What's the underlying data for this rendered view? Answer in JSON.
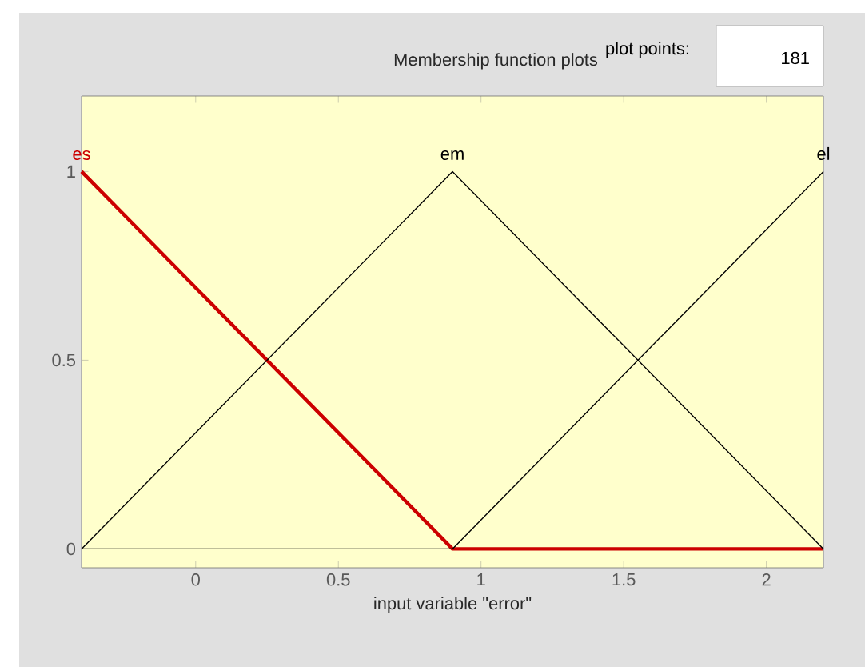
{
  "chart_data": {
    "type": "line",
    "title": "Membership function plots",
    "xlabel": "input variable \"error\"",
    "annotations": [
      "plot points:",
      "181"
    ],
    "x": [
      -0.4,
      0.9,
      2.2
    ],
    "series": [
      {
        "name": "es",
        "color": "#cc0000",
        "values": [
          1,
          0,
          0
        ]
      },
      {
        "name": "em",
        "color": "#000000",
        "values": [
          0,
          1,
          0
        ]
      },
      {
        "name": "el",
        "color": "#000000",
        "values": [
          0,
          0,
          1
        ]
      }
    ],
    "xlim": [
      -0.4,
      2.2
    ],
    "ylim": [
      -0.05,
      1.2
    ],
    "xticks": [
      0,
      0.5,
      1,
      1.5,
      2
    ],
    "yticks": [
      0,
      0.5,
      1
    ],
    "grid": false,
    "legend": false
  }
}
